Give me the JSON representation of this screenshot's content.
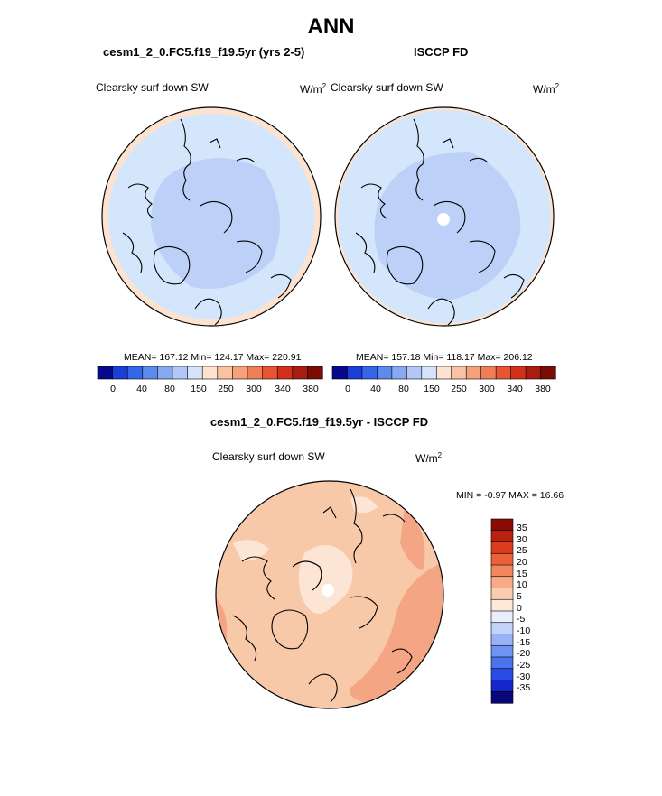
{
  "title": "ANN",
  "colors": {
    "abs_palette": [
      "#08088a",
      "#1a3fd8",
      "#3566e8",
      "#5b8bef",
      "#86a9f2",
      "#b3c7f7",
      "#d6e3fb",
      "#fde3cf",
      "#f9c2a3",
      "#f4a17c",
      "#ef7d55",
      "#e85533",
      "#d2301b",
      "#a81d10",
      "#7a0b05"
    ],
    "diff_palette": [
      "#08087a",
      "#1526cc",
      "#2a4ce6",
      "#4a73ee",
      "#6f93f1",
      "#98b2f5",
      "#c4d4f9",
      "#e8eefc",
      "#fde9d9",
      "#fbcdb0",
      "#f7ab85",
      "#f2875e",
      "#ec6138",
      "#dc3c1e",
      "#bb2110",
      "#8a0c04"
    ],
    "ocean_test": "#d4e6fb",
    "arctic_test": "#bdd1f8",
    "diff_base": "#f8c9a9",
    "diff_warm": "#f4a583",
    "diff_light": "#fce5d5",
    "land_outline": "#000000"
  },
  "panels": [
    {
      "title": "cesm1_2_0.FC5.f19_f19.5yr (yrs 2-5)",
      "variable": "Clearsky surf down SW",
      "units_base": "W/m",
      "units_exp": "2",
      "stats": "MEAN= 167.12  Min= 124.17  Max= 220.91",
      "colorbar_ticks": [
        "0",
        "40",
        "80",
        "150",
        "250",
        "300",
        "340",
        "380"
      ]
    },
    {
      "title": "ISCCP FD",
      "variable": "Clearsky surf down SW",
      "units_base": "W/m",
      "units_exp": "2",
      "stats": "MEAN= 157.18  Min= 118.17  Max= 206.12",
      "colorbar_ticks": [
        "0",
        "40",
        "80",
        "150",
        "250",
        "300",
        "340",
        "380"
      ]
    }
  ],
  "diff": {
    "title": "cesm1_2_0.FC5.f19_f19.5yr - ISCCP FD",
    "variable": "Clearsky surf down SW",
    "units_base": "W/m",
    "units_exp": "2",
    "stats": "MIN =  -0.97 MAX =  16.66",
    "colorbar_ticks": [
      "35",
      "30",
      "25",
      "20",
      "15",
      "10",
      "5",
      "0",
      "-5",
      "-10",
      "-15",
      "-20",
      "-25",
      "-30",
      "-35"
    ]
  },
  "chart_data": [
    {
      "type": "heatmap",
      "title": "cesm1_2_0.FC5.f19_f19.5yr (yrs 2-5)",
      "variable": "Clearsky surf down SW",
      "units": "W/m2",
      "projection": "north polar stereographic",
      "mean": 167.12,
      "min": 124.17,
      "max": 220.91,
      "colorbar_levels": [
        0,
        40,
        80,
        150,
        250,
        300,
        340,
        380
      ]
    },
    {
      "type": "heatmap",
      "title": "ISCCP FD",
      "variable": "Clearsky surf down SW",
      "units": "W/m2",
      "projection": "north polar stereographic",
      "mean": 157.18,
      "min": 118.17,
      "max": 206.12,
      "colorbar_levels": [
        0,
        40,
        80,
        150,
        250,
        300,
        340,
        380
      ]
    },
    {
      "type": "heatmap",
      "title": "cesm1_2_0.FC5.f19_f19.5yr - ISCCP FD",
      "variable": "Clearsky surf down SW",
      "units": "W/m2",
      "projection": "north polar stereographic",
      "min": -0.97,
      "max": 16.66,
      "colorbar_levels": [
        35,
        30,
        25,
        20,
        15,
        10,
        5,
        0,
        -5,
        -10,
        -15,
        -20,
        -25,
        -30,
        -35
      ]
    }
  ]
}
